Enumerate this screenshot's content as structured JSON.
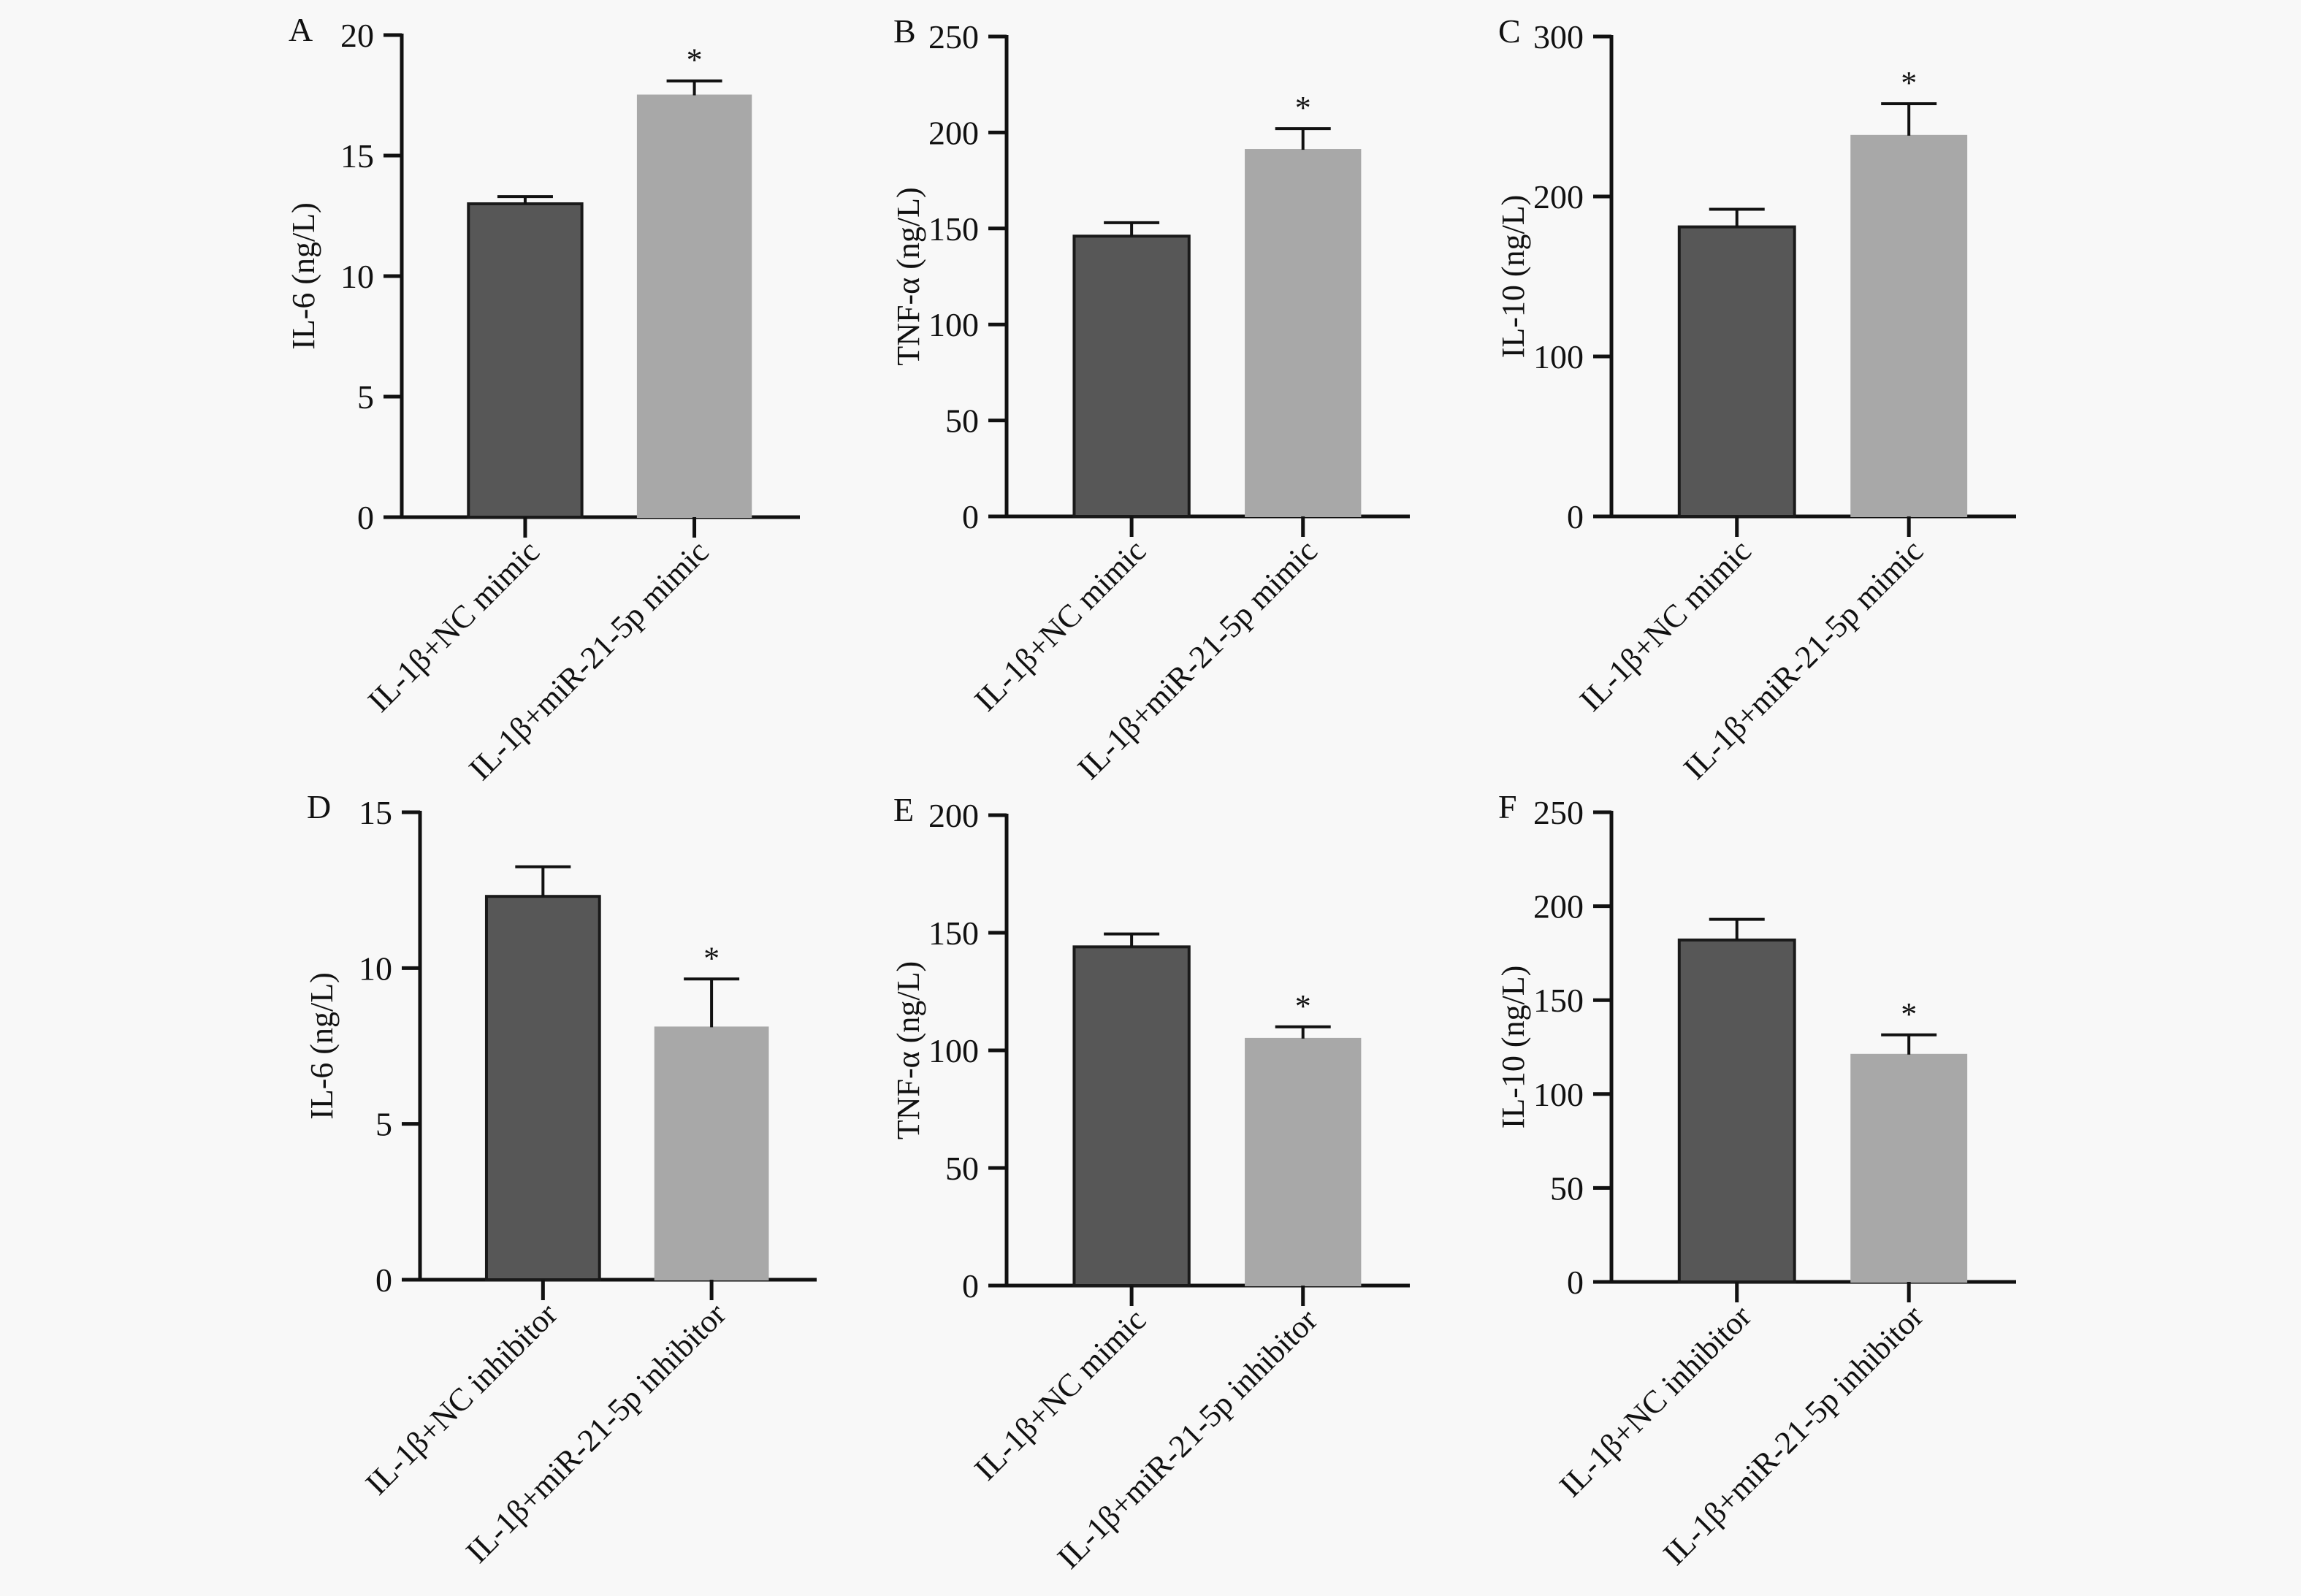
{
  "figure": {
    "bar_colors": [
      "#575757",
      "#a8a8a8"
    ],
    "axis_color": "#111111",
    "background": "#f8f8f8"
  },
  "chart_data": [
    {
      "panel": "A",
      "type": "bar",
      "ylabel": "IL-6 (ng/L)",
      "ylim": [
        0,
        20
      ],
      "yticks": [
        0,
        5,
        10,
        15,
        20
      ],
      "categories": [
        "IL-1β+NC mimic",
        "IL-1β+miR-21-5p mimic"
      ],
      "values": [
        13.0,
        17.5
      ],
      "errors": [
        0.3,
        0.6
      ],
      "significance": [
        "",
        "*"
      ]
    },
    {
      "panel": "B",
      "type": "bar",
      "ylabel": "TNF-α (ng/L)",
      "ylim": [
        0,
        250
      ],
      "yticks": [
        0,
        50,
        100,
        150,
        200,
        250
      ],
      "categories": [
        "IL-1β+NC mimic",
        "IL-1β+miR-21-5p mimic"
      ],
      "values": [
        146,
        191
      ],
      "errors": [
        7,
        11
      ],
      "significance": [
        "",
        "*"
      ]
    },
    {
      "panel": "C",
      "type": "bar",
      "ylabel": "IL-10 (ng/L)",
      "ylim": [
        0,
        300
      ],
      "yticks": [
        0,
        100,
        200,
        300
      ],
      "categories": [
        "IL-1β+NC mimic",
        "IL-1β+miR-21-5p mimic"
      ],
      "values": [
        181,
        238
      ],
      "errors": [
        11,
        20
      ],
      "significance": [
        "",
        "*"
      ]
    },
    {
      "panel": "D",
      "type": "bar",
      "ylabel": "IL-6 (ng/L)",
      "ylim": [
        0,
        15
      ],
      "yticks": [
        0,
        5,
        10,
        15
      ],
      "categories": [
        "IL-1β+NC inhibitor",
        "IL-1β+miR-21-5p inhibitor"
      ],
      "values": [
        12.3,
        8.1
      ],
      "errors": [
        0.95,
        1.55
      ],
      "significance": [
        "",
        "*"
      ]
    },
    {
      "panel": "E",
      "type": "bar",
      "ylabel": "TNF-α (ng/L)",
      "ylim": [
        0,
        200
      ],
      "yticks": [
        0,
        50,
        100,
        150,
        200
      ],
      "categories": [
        "IL-1β+NC mimic",
        "IL-1β+miR-21-5p inhibitor"
      ],
      "values": [
        144,
        105
      ],
      "errors": [
        5.5,
        5
      ],
      "significance": [
        "",
        "*"
      ]
    },
    {
      "panel": "F",
      "type": "bar",
      "ylabel": "IL-10 (ng/L)",
      "ylim": [
        0,
        250
      ],
      "yticks": [
        0,
        50,
        100,
        150,
        200,
        250
      ],
      "categories": [
        "IL-1β+NC inhibitor",
        "IL-1β+miR-21-5p inhibitor"
      ],
      "values": [
        182,
        121
      ],
      "errors": [
        11,
        10.5
      ],
      "significance": [
        "",
        "*"
      ]
    }
  ]
}
